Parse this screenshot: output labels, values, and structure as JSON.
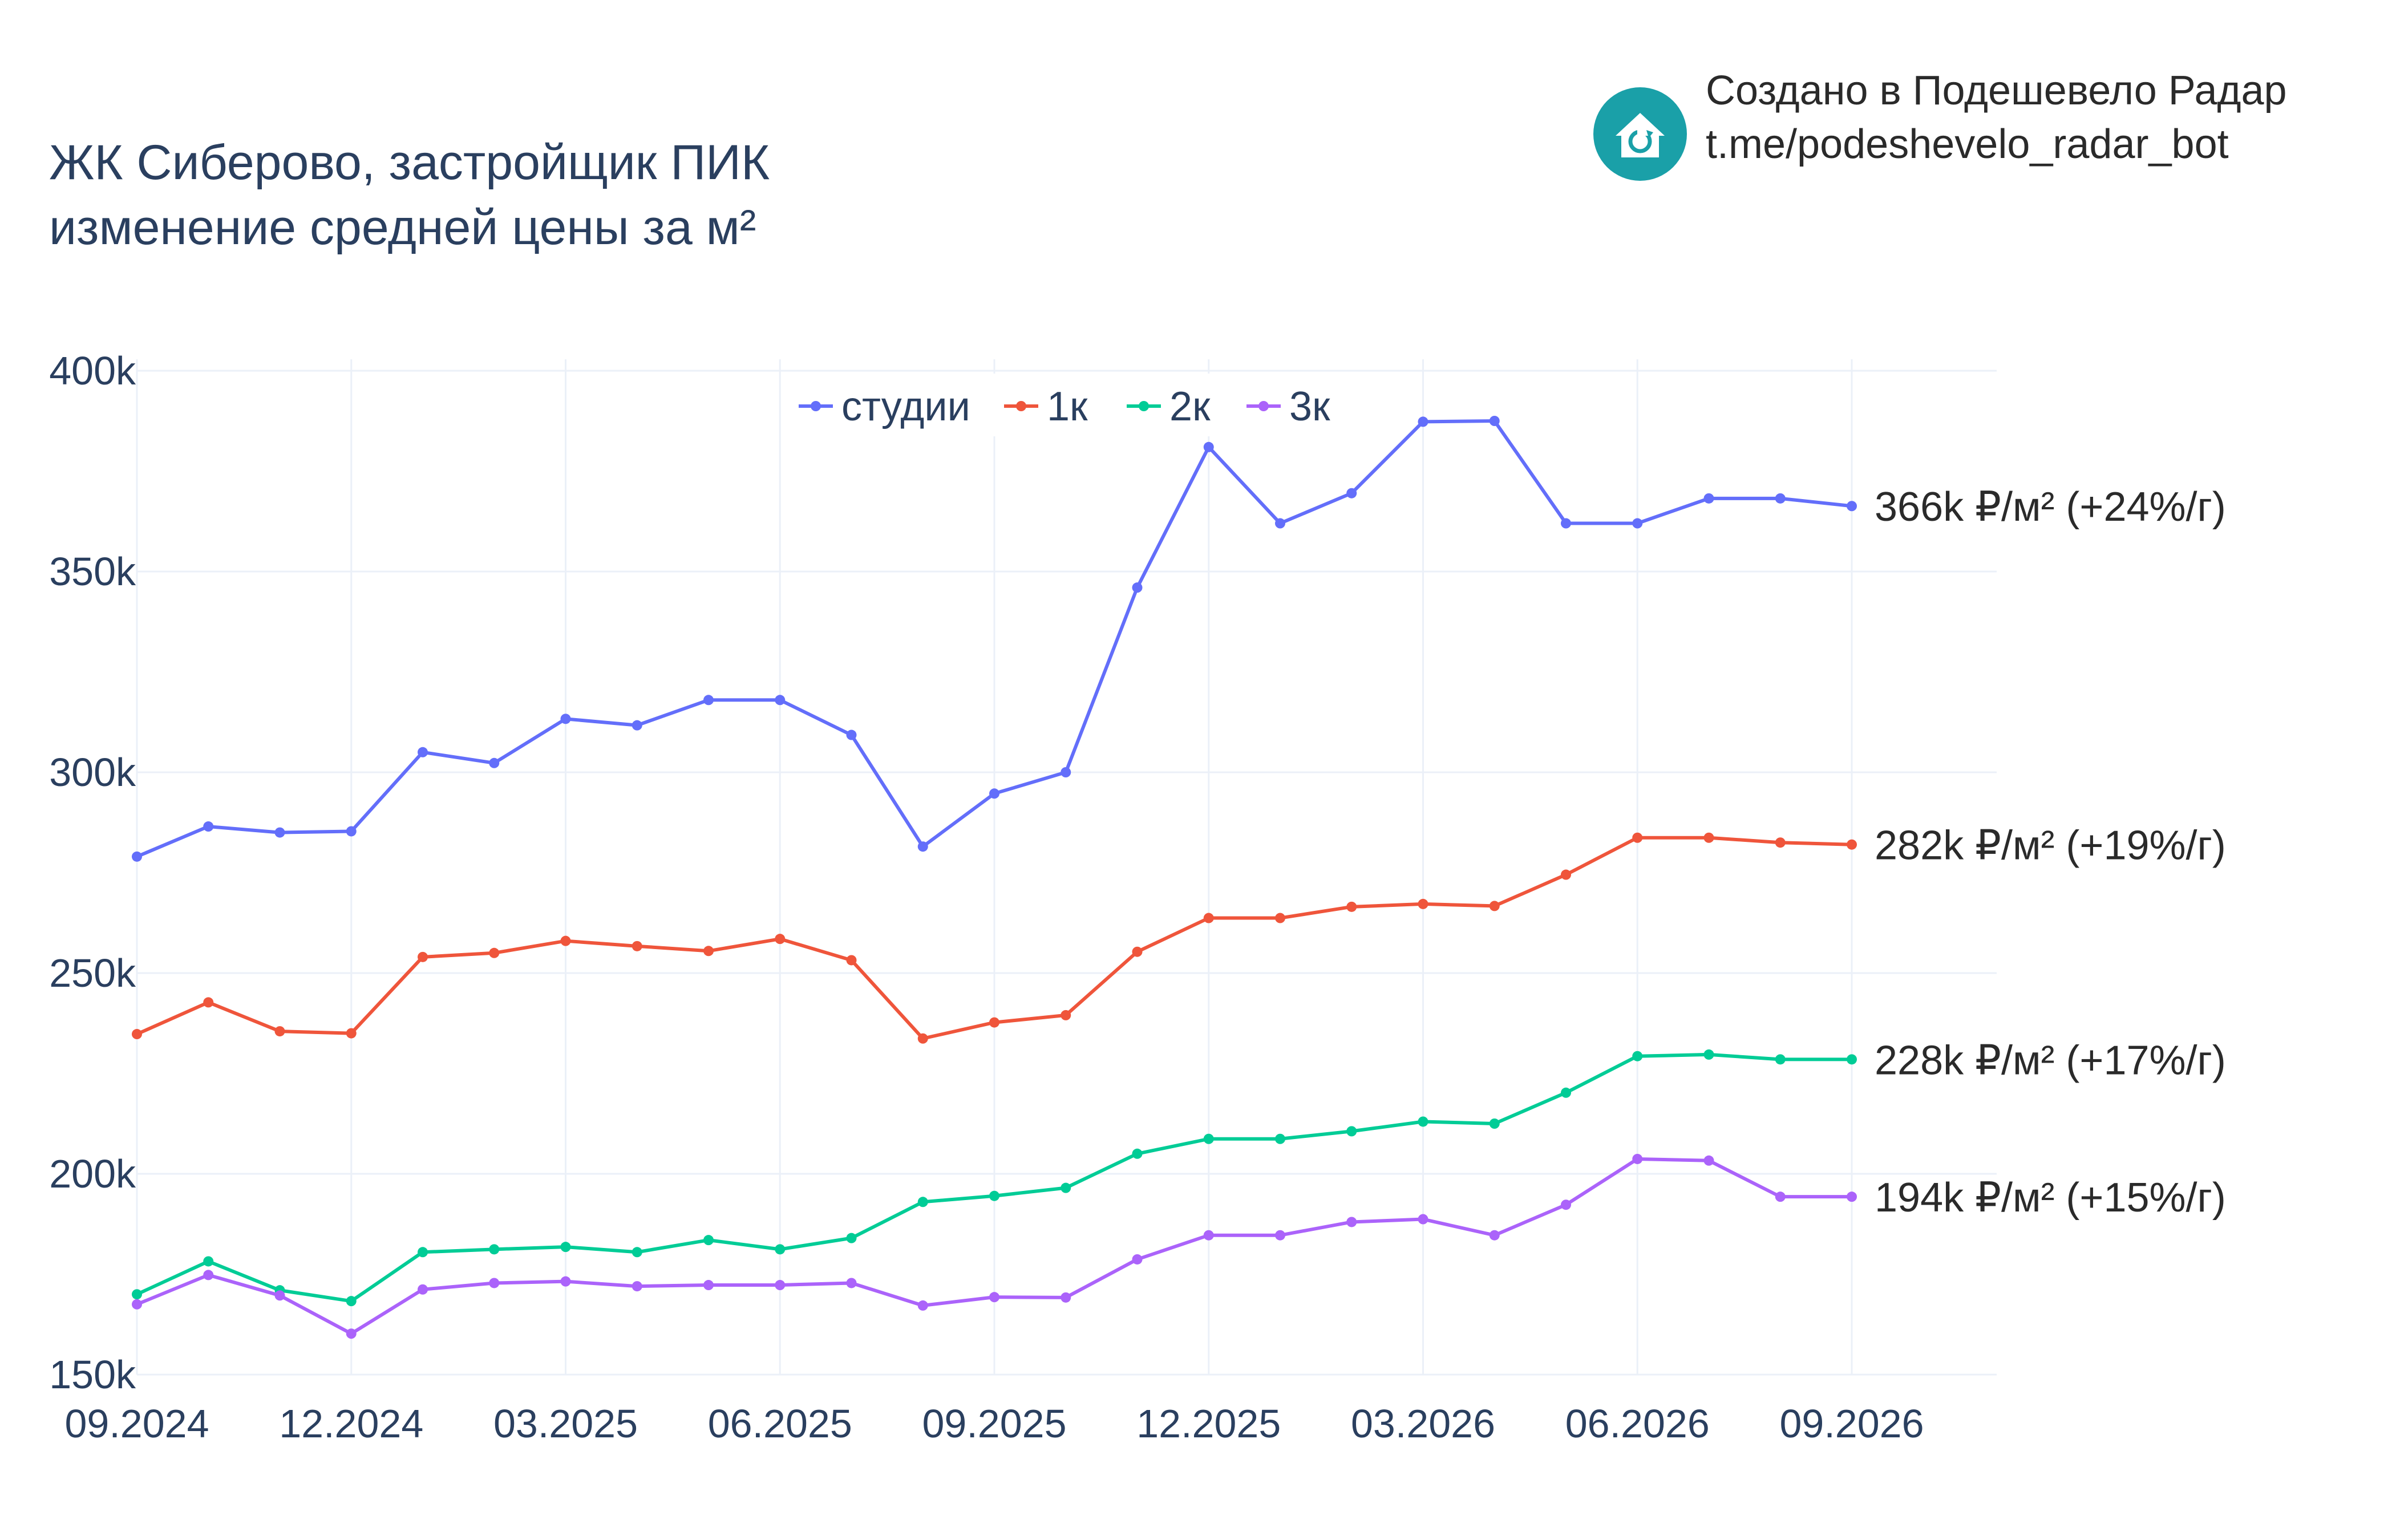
{
  "title": {
    "line1": "ЖК Сиберово, застройщик ПИК",
    "line2": "изменение средней цены за м²"
  },
  "brand": {
    "line1": "Создано в Подешевело Радар",
    "line2": "t.me/podeshevelo_radar_bot",
    "logo_icon": "house-refresh-icon",
    "logo_color": "#1aa0a8"
  },
  "chart_data": {
    "type": "line",
    "x": [
      "09.2024",
      "10.2024",
      "11.2024",
      "12.2024",
      "01.2025",
      "02.2025",
      "03.2025",
      "04.2025",
      "05.2025",
      "06.2025",
      "07.2025",
      "08.2025",
      "09.2025",
      "10.2025",
      "11.2025",
      "12.2025",
      "01.2026",
      "02.2026",
      "03.2026",
      "04.2026",
      "05.2026",
      "06.2026",
      "07.2026",
      "08.2026",
      "09.2026"
    ],
    "x_ticks": [
      "09.2024",
      "12.2024",
      "03.2025",
      "06.2025",
      "09.2025",
      "12.2025",
      "03.2026",
      "06.2026",
      "09.2026"
    ],
    "y_ticks": [
      "150k",
      "200k",
      "250k",
      "300k",
      "350k",
      "400k"
    ],
    "y_tick_values": [
      150000,
      200000,
      250000,
      300000,
      350000,
      400000
    ],
    "ylim": [
      150000,
      400000
    ],
    "grid": true,
    "legend_placement": "top-center",
    "series": [
      {
        "name": "студии",
        "color": "#636efa",
        "end_label": "366k ₽/м² (+24%/г)",
        "values": [
          279000,
          286500,
          285000,
          285300,
          305000,
          302300,
          313300,
          311700,
          318000,
          318000,
          309300,
          281500,
          294700,
          300000,
          346000,
          381000,
          362000,
          369500,
          387300,
          387500,
          362000,
          362000,
          368200,
          368200,
          366300
        ]
      },
      {
        "name": "1к",
        "color": "#ef553b",
        "end_label": "282k ₽/м² (+19%/г)",
        "values": [
          234800,
          242700,
          235500,
          235000,
          254000,
          255000,
          258000,
          256700,
          255500,
          258500,
          253200,
          233700,
          237700,
          239500,
          255300,
          263700,
          263700,
          266500,
          267200,
          266700,
          274500,
          283700,
          283700,
          282500,
          282000
        ]
      },
      {
        "name": "2к",
        "color": "#00cc96",
        "end_label": "228k ₽/м² (+17%/г)",
        "values": [
          170000,
          178200,
          171000,
          168300,
          180500,
          181200,
          181800,
          180500,
          183500,
          181200,
          184000,
          193000,
          194500,
          196500,
          205000,
          208700,
          208700,
          210600,
          213000,
          212500,
          220200,
          229300,
          229700,
          228500,
          228500
        ]
      },
      {
        "name": "3к",
        "color": "#ab63fa",
        "end_label": "194k ₽/м² (+15%/г)",
        "values": [
          167500,
          174800,
          169700,
          160200,
          171200,
          172800,
          173200,
          172000,
          172300,
          172300,
          172800,
          167200,
          169300,
          169200,
          178700,
          184700,
          184700,
          188000,
          188700,
          184700,
          192300,
          203700,
          203300,
          194300,
          194300
        ]
      }
    ]
  }
}
